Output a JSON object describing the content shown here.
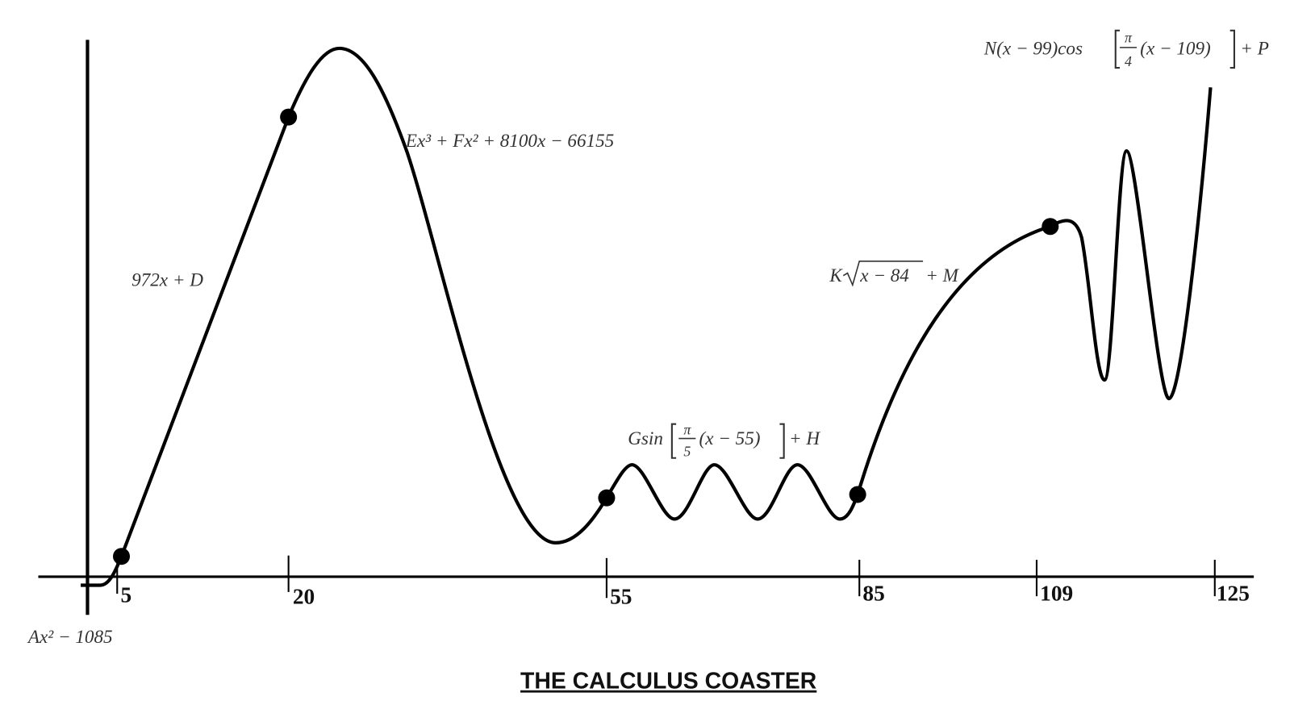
{
  "title": "THE CALCULUS COASTER",
  "axis_labels": [
    "5",
    "20",
    "55",
    "85",
    "109",
    "125"
  ],
  "equations": {
    "piece1": "Ax² − 1085",
    "piece2": "972x + D",
    "piece3": "Ex³ + Fx² + 8100x − 66155",
    "piece4": {
      "before": "Gsin",
      "numerator": "π",
      "denominator": "5",
      "inside": "(x − 55)",
      "after": "+ H"
    },
    "piece5": {
      "before": "K",
      "radicand": "x − 84",
      "after": "+ M"
    },
    "piece6": {
      "before": "N(x − 99)cos",
      "numerator": "π",
      "denominator": "4",
      "inside": "(x − 109)",
      "after": "+ P"
    }
  }
}
